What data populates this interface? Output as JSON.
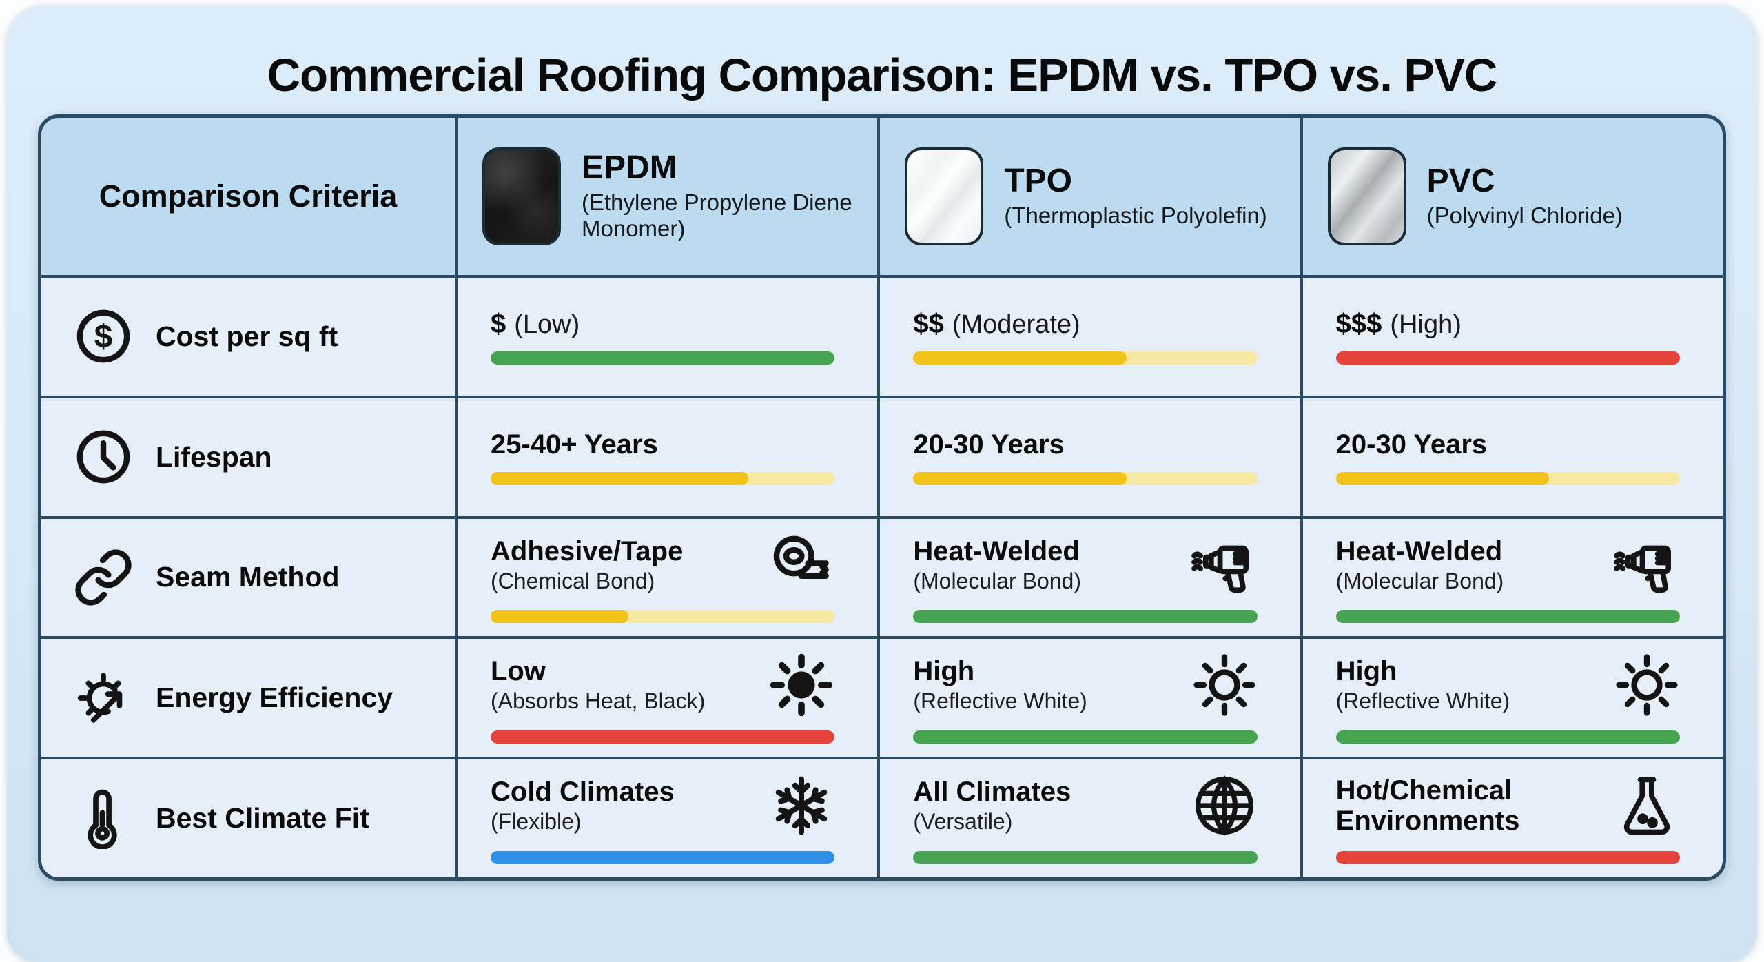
{
  "title": "Commercial Roofing Comparison: EPDM vs. TPO vs. PVC",
  "colors": {
    "green": "#45a351",
    "gold": "#f2c318",
    "goldLight": "#f8e9a2",
    "red": "#e5443c",
    "blue": "#2e90e6"
  },
  "header": {
    "criteria_label": "Comparison Criteria",
    "materials": [
      {
        "name": "EPDM",
        "subtitle": "(Ethylene Propylene Diene Monomer)",
        "swatch": "black-rubber-swatch"
      },
      {
        "name": "TPO",
        "subtitle": "(Thermoplastic Polyolefin)",
        "swatch": "white-membrane-swatch"
      },
      {
        "name": "PVC",
        "subtitle": "(Polyvinyl Chloride)",
        "swatch": "gray-membrane-swatch"
      }
    ]
  },
  "rows": [
    {
      "criterion": "Cost per sq ft",
      "icon": "dollar-circle-icon",
      "cells": [
        {
          "value": "$",
          "note": "(Low)",
          "sub": "",
          "icon": "",
          "bar": {
            "color": "green",
            "fill": 100
          }
        },
        {
          "value": "$$",
          "note": "(Moderate)",
          "sub": "",
          "icon": "",
          "bar": {
            "color": "gold",
            "fill": 62,
            "track": "goldLight"
          }
        },
        {
          "value": "$$$",
          "note": "(High)",
          "sub": "",
          "icon": "",
          "bar": {
            "color": "red",
            "fill": 100
          }
        }
      ]
    },
    {
      "criterion": "Lifespan",
      "icon": "clock-icon",
      "cells": [
        {
          "value": "25-40+ Years",
          "note": "",
          "sub": "",
          "icon": "",
          "bar": {
            "color": "gold",
            "fill": 75,
            "track": "goldLight"
          }
        },
        {
          "value": "20-30 Years",
          "note": "",
          "sub": "",
          "icon": "",
          "bar": {
            "color": "gold",
            "fill": 62,
            "track": "goldLight"
          }
        },
        {
          "value": "20-30 Years",
          "note": "",
          "sub": "",
          "icon": "",
          "bar": {
            "color": "gold",
            "fill": 62,
            "track": "goldLight"
          }
        }
      ]
    },
    {
      "criterion": "Seam Method",
      "icon": "chain-link-icon",
      "cells": [
        {
          "value": "Adhesive/Tape",
          "note": "",
          "sub": "(Chemical Bond)",
          "icon": "tape-roll-icon",
          "bar": {
            "color": "gold",
            "fill": 40,
            "track": "goldLight"
          }
        },
        {
          "value": "Heat-Welded",
          "note": "",
          "sub": "(Molecular Bond)",
          "icon": "heat-gun-icon",
          "bar": {
            "color": "green",
            "fill": 100
          }
        },
        {
          "value": "Heat-Welded",
          "note": "",
          "sub": "(Molecular Bond)",
          "icon": "heat-gun-icon",
          "bar": {
            "color": "green",
            "fill": 100
          }
        }
      ]
    },
    {
      "criterion": "Energy Efficiency",
      "icon": "sun-arrow-icon",
      "cells": [
        {
          "value": "Low",
          "note": "",
          "sub": "(Absorbs Heat, Black)",
          "icon": "sun-filled-icon",
          "bar": {
            "color": "red",
            "fill": 100
          }
        },
        {
          "value": "High",
          "note": "",
          "sub": "(Reflective White)",
          "icon": "sun-outline-icon",
          "bar": {
            "color": "green",
            "fill": 100
          }
        },
        {
          "value": "High",
          "note": "",
          "sub": "(Reflective White)",
          "icon": "sun-outline-icon",
          "bar": {
            "color": "green",
            "fill": 100
          }
        }
      ]
    },
    {
      "criterion": "Best Climate Fit",
      "icon": "thermometer-icon",
      "cells": [
        {
          "value": "Cold Climates",
          "note": "",
          "sub": "(Flexible)",
          "icon": "snowflake-icon",
          "bar": {
            "color": "blue",
            "fill": 100
          }
        },
        {
          "value": "All Climates",
          "note": "",
          "sub": "(Versatile)",
          "icon": "globe-icon",
          "bar": {
            "color": "green",
            "fill": 100
          }
        },
        {
          "value": "Hot/Chemical Environments",
          "note": "",
          "sub": "",
          "icon": "flask-icon",
          "bar": {
            "color": "red",
            "fill": 100
          }
        }
      ]
    }
  ],
  "chart_data": {
    "type": "table",
    "title": "Commercial Roofing Comparison: EPDM vs. TPO vs. PVC",
    "column_headers": [
      "Comparison Criteria",
      "EPDM (Ethylene Propylene Diene Monomer)",
      "TPO (Thermoplastic Polyolefin)",
      "PVC (Polyvinyl Chloride)"
    ],
    "rows": [
      {
        "criterion": "Cost per sq ft",
        "EPDM": "$ (Low)",
        "TPO": "$$ (Moderate)",
        "PVC": "$$$ (High)",
        "rating_bars": {
          "EPDM": {
            "color": "green",
            "fill_pct": 100
          },
          "TPO": {
            "color": "gold",
            "fill_pct": 62
          },
          "PVC": {
            "color": "red",
            "fill_pct": 100
          }
        }
      },
      {
        "criterion": "Lifespan",
        "EPDM": "25-40+ Years",
        "TPO": "20-30 Years",
        "PVC": "20-30 Years",
        "rating_bars": {
          "EPDM": {
            "color": "gold",
            "fill_pct": 75
          },
          "TPO": {
            "color": "gold",
            "fill_pct": 62
          },
          "PVC": {
            "color": "gold",
            "fill_pct": 62
          }
        }
      },
      {
        "criterion": "Seam Method",
        "EPDM": "Adhesive/Tape (Chemical Bond)",
        "TPO": "Heat-Welded (Molecular Bond)",
        "PVC": "Heat-Welded (Molecular Bond)",
        "rating_bars": {
          "EPDM": {
            "color": "gold",
            "fill_pct": 40
          },
          "TPO": {
            "color": "green",
            "fill_pct": 100
          },
          "PVC": {
            "color": "green",
            "fill_pct": 100
          }
        }
      },
      {
        "criterion": "Energy Efficiency",
        "EPDM": "Low (Absorbs Heat, Black)",
        "TPO": "High (Reflective White)",
        "PVC": "High (Reflective White)",
        "rating_bars": {
          "EPDM": {
            "color": "red",
            "fill_pct": 100
          },
          "TPO": {
            "color": "green",
            "fill_pct": 100
          },
          "PVC": {
            "color": "green",
            "fill_pct": 100
          }
        }
      },
      {
        "criterion": "Best Climate Fit",
        "EPDM": "Cold Climates (Flexible)",
        "TPO": "All Climates (Versatile)",
        "PVC": "Hot/Chemical Environments",
        "rating_bars": {
          "EPDM": {
            "color": "blue",
            "fill_pct": 100
          },
          "TPO": {
            "color": "green",
            "fill_pct": 100
          },
          "PVC": {
            "color": "red",
            "fill_pct": 100
          }
        }
      }
    ]
  }
}
